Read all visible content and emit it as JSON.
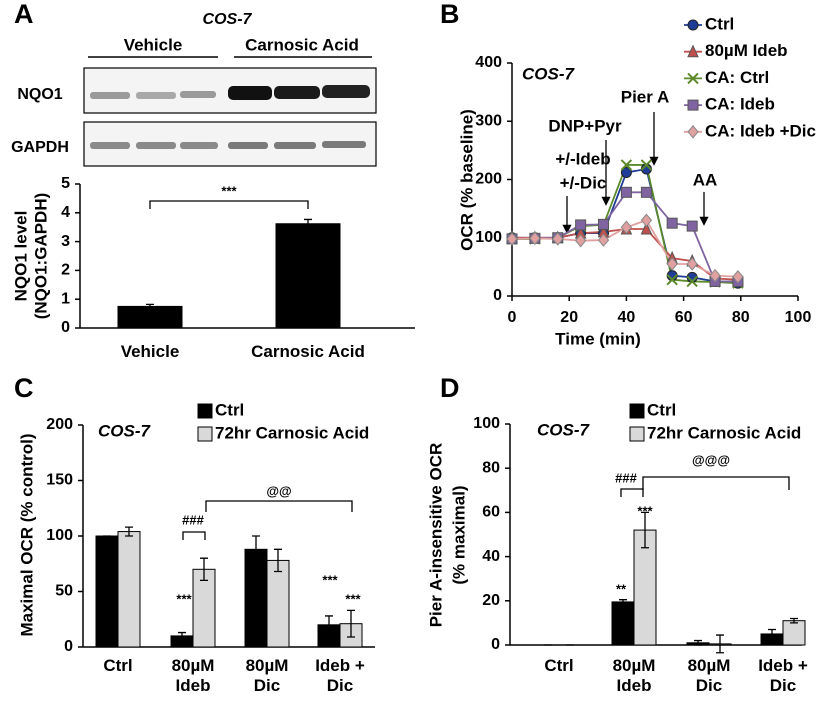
{
  "chart_data": [
    {
      "type": "bar",
      "panel_label": "A",
      "blot": {
        "title": "COS-7",
        "groups": [
          "Vehicle",
          "Carnosic Acid"
        ],
        "rows": [
          "NQO1",
          "GAPDH"
        ]
      },
      "ylabel": [
        "NQO1 level",
        "(NQO1:GAPDH)"
      ],
      "categories": [
        "Vehicle",
        "Carnosic Acid"
      ],
      "series": [
        {
          "color": "#000000",
          "values": [
            0.75,
            3.62
          ],
          "error": [
            0.07,
            0.15
          ]
        }
      ],
      "ylim": [
        0,
        5
      ],
      "yticks": [
        0,
        1,
        2,
        3,
        4,
        5
      ],
      "annotations": [
        "***"
      ]
    },
    {
      "type": "line",
      "panel_label": "B",
      "title": "COS-7",
      "xlabel": "Time (min)",
      "ylabel": [
        "OCR (% baseline)"
      ],
      "x": [
        0,
        8,
        16,
        24,
        32,
        40,
        47,
        56,
        63,
        71,
        79
      ],
      "series": [
        {
          "name": "Ctrl",
          "color": "#1f3c96",
          "marker": "circle",
          "values": [
            100,
            100,
            100,
            108,
            108,
            212,
            218,
            35,
            32,
            25,
            22
          ]
        },
        {
          "name": "80µM Ideb",
          "color": "#c0504d",
          "marker": "triangle",
          "values": [
            100,
            100,
            100,
            108,
            110,
            115,
            115,
            65,
            60,
            30,
            28
          ]
        },
        {
          "name": "CA: Ctrl",
          "color": "#5a8a2a",
          "marker": "x",
          "values": [
            98,
            98,
            100,
            120,
            122,
            225,
            225,
            28,
            25,
            24,
            22
          ]
        },
        {
          "name": "CA: Ideb",
          "color": "#8064a2",
          "marker": "square",
          "values": [
            98,
            99,
            100,
            122,
            123,
            178,
            178,
            125,
            120,
            25,
            25
          ]
        },
        {
          "name": "CA: Ideb +Dic",
          "color": "#e0a0a0",
          "marker": "diamond",
          "values": [
            98,
            99,
            98,
            95,
            96,
            118,
            130,
            55,
            55,
            35,
            33
          ]
        }
      ],
      "xlim": [
        0,
        100
      ],
      "xticks": [
        0,
        20,
        40,
        60,
        80,
        100
      ],
      "ylim": [
        0,
        400
      ],
      "yticks": [
        0,
        100,
        200,
        300,
        400
      ],
      "annotations": [
        "+/-Ideb",
        "+/-Dic",
        "DNP+Pyr",
        "Pier A",
        "AA"
      ]
    },
    {
      "type": "bar",
      "panel_label": "C",
      "title": "COS-7",
      "ylabel": [
        "Maximal OCR (% control)"
      ],
      "categories": [
        "Ctrl",
        "80µM Ideb",
        "80µM Dic",
        "Ideb + Dic"
      ],
      "series": [
        {
          "name": "Ctrl",
          "color": "#000000",
          "values": [
            100,
            10,
            88,
            20
          ],
          "error": [
            0,
            3,
            12,
            8
          ]
        },
        {
          "name": "72hr Carnosic Acid",
          "color": "#d9d9d9",
          "values": [
            104,
            70,
            78,
            21
          ],
          "error": [
            4,
            10,
            10,
            12
          ]
        }
      ],
      "ylim": [
        0,
        200
      ],
      "yticks": [
        0,
        50,
        100,
        150,
        200
      ],
      "annotations": [
        "***",
        "***",
        "***",
        "###",
        "@@"
      ]
    },
    {
      "type": "bar",
      "panel_label": "D",
      "title": "COS-7",
      "ylabel": [
        "Pier A-insensitive OCR",
        "(% maximal)"
      ],
      "categories": [
        "Ctrl",
        "80µM Ideb",
        "80µM Dic",
        "Ideb + Dic"
      ],
      "series": [
        {
          "name": "Ctrl",
          "color": "#000000",
          "values": [
            0,
            19.5,
            1,
            5
          ],
          "error": [
            0,
            1,
            1,
            2
          ]
        },
        {
          "name": "72hr Carnosic Acid",
          "color": "#d9d9d9",
          "values": [
            0,
            52,
            0.5,
            11
          ],
          "error": [
            0,
            8,
            4,
            1
          ]
        }
      ],
      "ylim": [
        0,
        100
      ],
      "yticks": [
        0,
        20,
        40,
        60,
        80,
        100
      ],
      "annotations": [
        "**",
        "***",
        "###",
        "@@@"
      ]
    }
  ]
}
